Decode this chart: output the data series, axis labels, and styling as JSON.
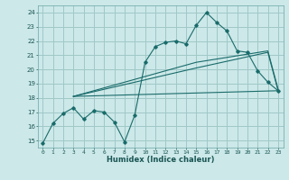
{
  "bg_color": "#cce8e8",
  "grid_color": "#a0c8c8",
  "line_color": "#1a6b6b",
  "xlabel": "Humidex (Indice chaleur)",
  "xlim": [
    -0.5,
    23.5
  ],
  "ylim": [
    14.5,
    24.5
  ],
  "yticks": [
    15,
    16,
    17,
    18,
    19,
    20,
    21,
    22,
    23,
    24
  ],
  "xticks": [
    0,
    1,
    2,
    3,
    4,
    5,
    6,
    7,
    8,
    9,
    10,
    11,
    12,
    13,
    14,
    15,
    16,
    17,
    18,
    19,
    20,
    21,
    22,
    23
  ],
  "series1_x": [
    0,
    1,
    2,
    3,
    4,
    5,
    6,
    7,
    8,
    9,
    10,
    11,
    12,
    13,
    14,
    15,
    16,
    17,
    18,
    19,
    20,
    21,
    22,
    23
  ],
  "series1_y": [
    14.8,
    16.2,
    16.9,
    17.3,
    16.5,
    17.1,
    17.0,
    16.3,
    14.9,
    16.8,
    20.5,
    21.6,
    21.9,
    22.0,
    21.8,
    23.1,
    24.0,
    23.3,
    22.7,
    21.3,
    21.2,
    19.9,
    19.1,
    18.5
  ],
  "series2_x": [
    3,
    15,
    22,
    23
  ],
  "series2_y": [
    18.1,
    20.1,
    21.2,
    18.5
  ],
  "series3_x": [
    3,
    15,
    22,
    23
  ],
  "series3_y": [
    18.1,
    20.5,
    21.3,
    18.6
  ],
  "series4_x": [
    3,
    23
  ],
  "series4_y": [
    18.1,
    18.5
  ]
}
